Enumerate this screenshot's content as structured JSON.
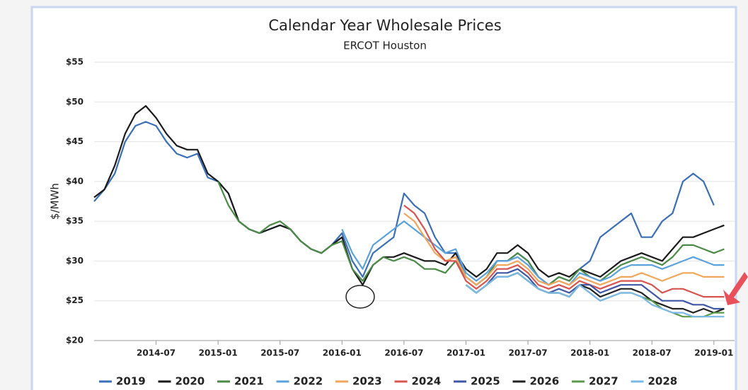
{
  "chart_data": {
    "type": "line",
    "title": "Calendar Year Wholesale Prices",
    "subtitle": "ERCOT Houston",
    "y_label": "$/MWh",
    "x": [
      "2014-01",
      "2014-02",
      "2014-03",
      "2014-04",
      "2014-05",
      "2014-06",
      "2014-07",
      "2014-08",
      "2014-09",
      "2014-10",
      "2014-11",
      "2014-12",
      "2015-01",
      "2015-02",
      "2015-03",
      "2015-04",
      "2015-05",
      "2015-06",
      "2015-07",
      "2015-08",
      "2015-09",
      "2015-10",
      "2015-11",
      "2015-12",
      "2016-01",
      "2016-02",
      "2016-03",
      "2016-04",
      "2016-05",
      "2016-06",
      "2016-07",
      "2016-08",
      "2016-09",
      "2016-10",
      "2016-11",
      "2016-12",
      "2017-01",
      "2017-02",
      "2017-03",
      "2017-04",
      "2017-05",
      "2017-06",
      "2017-07",
      "2017-08",
      "2017-09",
      "2017-10",
      "2017-11",
      "2017-12",
      "2018-01",
      "2018-02",
      "2018-03",
      "2018-04",
      "2018-05",
      "2018-06",
      "2018-07",
      "2018-08",
      "2018-09",
      "2018-10",
      "2018-11",
      "2018-12",
      "2019-01",
      "2019-02"
    ],
    "xlim": [
      "2014-01",
      "2019-03"
    ],
    "xticks": [
      "2014-07",
      "2015-01",
      "2015-07",
      "2016-01",
      "2016-07",
      "2017-01",
      "2017-07",
      "2018-01",
      "2018-07",
      "2019-01"
    ],
    "ylim": [
      20,
      55
    ],
    "yticks": [
      {
        "value": 20,
        "label": "$20"
      },
      {
        "value": 25,
        "label": "$25"
      },
      {
        "value": 30,
        "label": "$30"
      },
      {
        "value": 35,
        "label": "$35"
      },
      {
        "value": 40,
        "label": "$40"
      },
      {
        "value": 45,
        "label": "$45"
      },
      {
        "value": 50,
        "label": "$50"
      },
      {
        "value": 55,
        "label": "$55"
      }
    ],
    "grid": true,
    "legend": "bottom",
    "series": [
      {
        "name": "2019",
        "color": "#3a6fb8",
        "values": [
          37.5,
          39,
          41,
          45,
          47,
          47.5,
          47,
          45,
          43.5,
          43,
          43.5,
          40.5,
          40,
          38.5,
          35,
          34,
          33.5,
          34,
          34.5,
          34,
          32.5,
          31.5,
          31,
          32,
          33.5,
          30,
          28,
          31,
          32,
          33,
          38.5,
          37,
          36,
          33,
          31,
          31,
          28,
          27,
          28,
          30,
          30,
          31,
          30,
          28,
          27,
          28,
          27.5,
          29,
          30,
          33,
          34,
          35,
          36,
          33,
          33,
          35,
          36,
          40,
          41,
          40,
          37,
          null
        ]
      },
      {
        "name": "2020",
        "color": "#1a1a1a",
        "values": [
          38,
          39,
          42,
          46,
          48.5,
          49.5,
          48,
          46,
          44.5,
          44,
          44,
          41,
          40,
          38.5,
          35,
          34,
          33.5,
          34,
          34.5,
          34,
          32.5,
          31.5,
          31,
          32,
          33,
          29,
          27,
          29.5,
          30.5,
          30.5,
          31,
          30.5,
          30,
          30,
          29.5,
          31,
          29,
          28,
          29,
          31,
          31,
          32,
          31,
          29,
          28,
          28.5,
          28,
          29,
          28.5,
          28,
          29,
          30,
          30.5,
          31,
          30.5,
          30,
          31.5,
          33,
          33,
          33.5,
          34,
          34.5
        ]
      },
      {
        "name": "2021",
        "color": "#4b8a47",
        "values": [
          null,
          null,
          null,
          null,
          null,
          null,
          null,
          null,
          null,
          null,
          null,
          null,
          40,
          37,
          35,
          34,
          33.5,
          34.5,
          35,
          34,
          32.5,
          31.5,
          31,
          32,
          32.5,
          29,
          27.5,
          29.5,
          30.5,
          30,
          30.5,
          30,
          29,
          29,
          28.5,
          30,
          28,
          27,
          28,
          30,
          30,
          31,
          30,
          28,
          27,
          28,
          27.5,
          29,
          28,
          27.5,
          28.5,
          29.5,
          30,
          30.5,
          30,
          29.5,
          30.5,
          32,
          32,
          31.5,
          31,
          31.5
        ]
      },
      {
        "name": "2022",
        "color": "#5aa2dc",
        "values": [
          null,
          null,
          null,
          null,
          null,
          null,
          null,
          null,
          null,
          null,
          null,
          null,
          null,
          null,
          null,
          null,
          null,
          null,
          null,
          null,
          null,
          null,
          null,
          null,
          34,
          31,
          29,
          32,
          33,
          34,
          35,
          34,
          33,
          32,
          31,
          31.5,
          28.5,
          27.5,
          28.5,
          30,
          30,
          30.5,
          29.5,
          28,
          27,
          27.5,
          27,
          28.5,
          28,
          27.5,
          28,
          29,
          29.5,
          29.5,
          29.5,
          29,
          29.5,
          30,
          30.5,
          30,
          29.5,
          29.5
        ]
      },
      {
        "name": "2023",
        "color": "#f2a65a",
        "values": [
          null,
          null,
          null,
          null,
          null,
          null,
          null,
          null,
          null,
          null,
          null,
          null,
          null,
          null,
          null,
          null,
          null,
          null,
          null,
          null,
          null,
          null,
          null,
          null,
          null,
          null,
          null,
          null,
          null,
          null,
          36,
          35,
          33,
          31,
          30,
          30.5,
          28,
          27,
          28,
          29.5,
          29.5,
          30,
          29,
          27.5,
          27,
          27.5,
          27,
          28,
          27.5,
          27,
          27.5,
          28,
          28,
          28.5,
          28,
          27.5,
          28,
          28.5,
          28.5,
          28,
          28,
          28
        ]
      },
      {
        "name": "2024",
        "color": "#d9534f",
        "values": [
          null,
          null,
          null,
          null,
          null,
          null,
          null,
          null,
          null,
          null,
          null,
          null,
          null,
          null,
          null,
          null,
          null,
          null,
          null,
          null,
          null,
          null,
          null,
          null,
          null,
          null,
          null,
          null,
          null,
          null,
          37,
          36,
          34,
          31.5,
          30,
          30,
          27.5,
          26.5,
          27.5,
          29,
          29,
          29.5,
          28.5,
          27,
          26.5,
          27,
          26.5,
          27.5,
          27,
          26.5,
          27,
          27.5,
          27.5,
          27.5,
          27,
          26,
          26.5,
          26.5,
          26,
          25.5,
          25.5,
          25.5
        ]
      },
      {
        "name": "2025",
        "color": "#3f57a6",
        "values": [
          null,
          null,
          null,
          null,
          null,
          null,
          null,
          null,
          null,
          null,
          null,
          null,
          null,
          null,
          null,
          null,
          null,
          null,
          null,
          null,
          null,
          null,
          null,
          null,
          null,
          null,
          null,
          null,
          null,
          null,
          null,
          null,
          null,
          null,
          null,
          null,
          27,
          26,
          27,
          28.5,
          28.5,
          29,
          28,
          26.5,
          26,
          26.5,
          26,
          27,
          27,
          26,
          26.5,
          27,
          27,
          27,
          26,
          25,
          25,
          25,
          24.5,
          24.5,
          24,
          24
        ]
      },
      {
        "name": "2026",
        "color": "#222222",
        "values": [
          null,
          null,
          null,
          null,
          null,
          null,
          null,
          null,
          null,
          null,
          null,
          null,
          null,
          null,
          null,
          null,
          null,
          null,
          null,
          null,
          null,
          null,
          null,
          null,
          null,
          null,
          null,
          null,
          null,
          null,
          null,
          null,
          null,
          null,
          null,
          null,
          27,
          26,
          27,
          28,
          28,
          28.5,
          27.5,
          26.5,
          26,
          26,
          25.5,
          27,
          26.5,
          25.5,
          26,
          26.5,
          26.5,
          26,
          25,
          24.5,
          24,
          24,
          23.5,
          24,
          23.5,
          24
        ]
      },
      {
        "name": "2027",
        "color": "#5a9a4a",
        "values": [
          null,
          null,
          null,
          null,
          null,
          null,
          null,
          null,
          null,
          null,
          null,
          null,
          null,
          null,
          null,
          null,
          null,
          null,
          null,
          null,
          null,
          null,
          null,
          null,
          null,
          null,
          null,
          null,
          null,
          null,
          null,
          null,
          null,
          null,
          null,
          null,
          27,
          26,
          27,
          28,
          28,
          28.5,
          27.5,
          26.5,
          26,
          26,
          25.5,
          27,
          26,
          25,
          25.5,
          26,
          26,
          25.5,
          25,
          24,
          23.5,
          23,
          23,
          23,
          23.5,
          23.5
        ]
      },
      {
        "name": "2028",
        "color": "#7ab8e8",
        "values": [
          null,
          null,
          null,
          null,
          null,
          null,
          null,
          null,
          null,
          null,
          null,
          null,
          null,
          null,
          null,
          null,
          null,
          null,
          null,
          null,
          null,
          null,
          null,
          null,
          null,
          null,
          null,
          null,
          null,
          null,
          null,
          null,
          null,
          null,
          null,
          null,
          27,
          26,
          27,
          28,
          28,
          28.5,
          27.5,
          26.5,
          26,
          26,
          25.5,
          27,
          26,
          25,
          25.5,
          26,
          26,
          25.5,
          24.5,
          24,
          23.5,
          23.5,
          23,
          23,
          23,
          23
        ]
      }
    ]
  }
}
